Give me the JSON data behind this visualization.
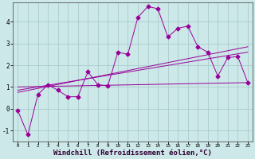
{
  "background_color": "#cce8e8",
  "grid_color": "#aacccc",
  "line_color": "#990099",
  "xlabel": "Windchill (Refroidissement éolien,°C)",
  "xlabel_fontsize": 6.5,
  "yticks": [
    -1,
    0,
    1,
    2,
    3,
    4
  ],
  "xticks": [
    0,
    1,
    2,
    3,
    4,
    5,
    6,
    7,
    8,
    9,
    10,
    11,
    12,
    13,
    14,
    15,
    16,
    17,
    18,
    19,
    20,
    21,
    22,
    23
  ],
  "xlim": [
    -0.5,
    23.5
  ],
  "ylim": [
    -1.5,
    4.9
  ],
  "series1_x": [
    0,
    1,
    2,
    3,
    4,
    5,
    6,
    7,
    8,
    9,
    10,
    11,
    12,
    13,
    14,
    15,
    16,
    17,
    18,
    19,
    20,
    21,
    22,
    23
  ],
  "series1_y": [
    -0.1,
    -1.2,
    0.65,
    1.1,
    0.85,
    0.55,
    0.55,
    1.7,
    1.1,
    1.05,
    2.6,
    2.5,
    4.2,
    4.7,
    4.6,
    3.3,
    3.7,
    3.8,
    2.85,
    2.6,
    1.5,
    2.35,
    2.4,
    1.2
  ],
  "line1_x": [
    0,
    23
  ],
  "line1_y": [
    1.0,
    1.2
  ],
  "line2_x": [
    0,
    23
  ],
  "line2_y": [
    0.85,
    2.6
  ],
  "line3_x": [
    0,
    23
  ],
  "line3_y": [
    0.75,
    2.85
  ]
}
